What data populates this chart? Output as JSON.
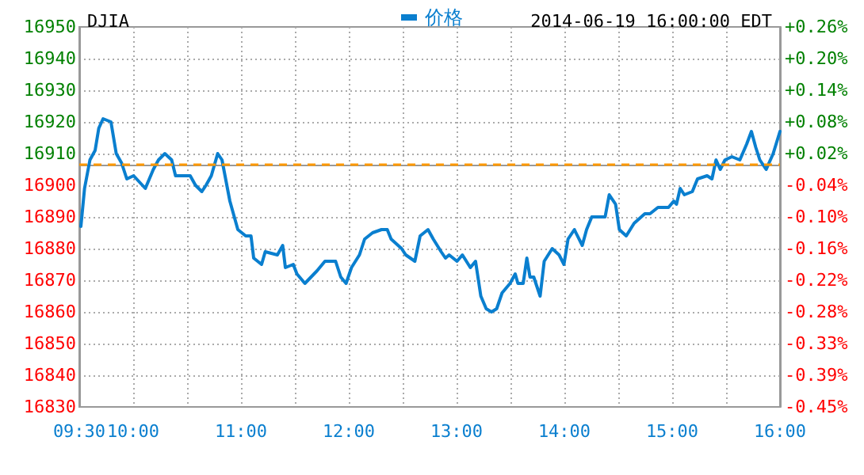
{
  "chart_data": {
    "type": "line",
    "title": "DJIA",
    "subtitle": "2014-06-19 16:00:00 EDT",
    "x": [
      9.515,
      9.549,
      9.599,
      9.647,
      9.681,
      9.721,
      9.794,
      9.843,
      9.893,
      9.941,
      10.004,
      10.113,
      10.187,
      10.235,
      10.294,
      10.357,
      10.393,
      10.456,
      10.529,
      10.578,
      10.637,
      10.676,
      10.725,
      10.784,
      10.824,
      10.897,
      10.971,
      11.044,
      11.093,
      11.118,
      11.191,
      11.225,
      11.338,
      11.387,
      11.412,
      11.485,
      11.519,
      11.593,
      11.706,
      11.779,
      11.804,
      11.878,
      11.926,
      11.975,
      12.025,
      12.099,
      12.147,
      12.221,
      12.304,
      12.357,
      12.393,
      12.49,
      12.529,
      12.613,
      12.662,
      12.735,
      12.784,
      12.857,
      12.897,
      12.931,
      13.004,
      13.054,
      13.128,
      13.176,
      13.225,
      13.275,
      13.324,
      13.372,
      13.422,
      13.496,
      13.544,
      13.569,
      13.618,
      13.652,
      13.681,
      13.716,
      13.775,
      13.813,
      13.887,
      13.951,
      13.996,
      14.034,
      14.093,
      14.107,
      14.166,
      14.206,
      14.254,
      14.378,
      14.416,
      14.475,
      14.51,
      14.574,
      14.647,
      14.746,
      14.794,
      14.868,
      14.966,
      15.015,
      15.04,
      15.074,
      15.113,
      15.187,
      15.235,
      15.324,
      15.369,
      15.407,
      15.446,
      15.49,
      15.554,
      15.628,
      15.691,
      15.735,
      15.775,
      15.813,
      15.872,
      15.937,
      16.0
    ],
    "series": [
      {
        "name": "价格",
        "color": "#0a7fcf",
        "values": [
          16887,
          16899,
          16908,
          16911,
          16918,
          16921,
          16920,
          16910,
          16907,
          16902,
          16903,
          16899,
          16905,
          16908,
          16910,
          16908,
          16903,
          16903,
          16903,
          16900,
          16898,
          16900,
          16903,
          16910,
          16908,
          16895,
          16886,
          16884,
          16884,
          16877,
          16875,
          16879,
          16878,
          16881,
          16874,
          16875,
          16872,
          16869,
          16873,
          16876,
          16876,
          16876,
          16871,
          16869,
          16874,
          16878,
          16883,
          16885,
          16886,
          16886,
          16883,
          16880,
          16878,
          16876,
          16884,
          16886,
          16883,
          16879,
          16877,
          16878,
          16876,
          16878,
          16874,
          16876,
          16865,
          16861,
          16860,
          16861,
          16866,
          16869,
          16872,
          16869,
          16869,
          16877,
          16871,
          16871,
          16865,
          16876,
          16880,
          16878,
          16875,
          16883,
          16886,
          16885,
          16881,
          16886,
          16890,
          16890,
          16897,
          16894,
          16886,
          16884,
          16888,
          16891,
          16891,
          16893,
          16893,
          16895,
          16894,
          16899,
          16897,
          16898,
          16902,
          16903,
          16902,
          16908,
          16905,
          16908,
          16909,
          16908,
          16913,
          16917,
          16912,
          16908,
          16905,
          16910,
          16917
        ]
      }
    ],
    "xlim": [
      9.5,
      16
    ],
    "xticks": [
      {
        "value": 9.5,
        "label": "09:30"
      },
      {
        "value": 10,
        "label": "10:00"
      },
      {
        "value": 10.5,
        "label": null
      },
      {
        "value": 11,
        "label": "11:00"
      },
      {
        "value": 11.5,
        "label": null
      },
      {
        "value": 12,
        "label": "12:00"
      },
      {
        "value": 12.5,
        "label": null
      },
      {
        "value": 13,
        "label": "13:00"
      },
      {
        "value": 13.5,
        "label": null
      },
      {
        "value": 14,
        "label": "14:00"
      },
      {
        "value": 14.5,
        "label": null
      },
      {
        "value": 15,
        "label": "15:00"
      },
      {
        "value": 15.5,
        "label": null
      },
      {
        "value": 16,
        "label": "16:00"
      }
    ],
    "ylim": [
      16830,
      16950
    ],
    "yticks": [
      16830,
      16840,
      16850,
      16860,
      16870,
      16880,
      16890,
      16900,
      16910,
      16920,
      16930,
      16940,
      16950
    ],
    "y2lim": [
      -0.453,
      0.257
    ],
    "y2ticks": [
      {
        "value": -0.453,
        "label": "-0.45%"
      },
      {
        "value": -0.394,
        "label": "-0.39%"
      },
      {
        "value": -0.335,
        "label": "-0.33%"
      },
      {
        "value": -0.276,
        "label": "-0.28%"
      },
      {
        "value": -0.217,
        "label": "-0.22%"
      },
      {
        "value": -0.157,
        "label": "-0.16%"
      },
      {
        "value": -0.098,
        "label": "-0.10%"
      },
      {
        "value": -0.039,
        "label": "-0.04%"
      },
      {
        "value": 0.02,
        "label": "+0.02%"
      },
      {
        "value": 0.079,
        "label": "+0.08%"
      },
      {
        "value": 0.138,
        "label": "+0.14%"
      },
      {
        "value": 0.198,
        "label": "+0.20%"
      },
      {
        "value": 0.257,
        "label": "+0.26%"
      }
    ],
    "ref_lines": [
      {
        "axis": "y",
        "value": 16906.6,
        "color": "#ff9900",
        "line_style": "dashed"
      }
    ],
    "grid": true,
    "legend": "top",
    "marker": "none",
    "line_style": "solid"
  }
}
